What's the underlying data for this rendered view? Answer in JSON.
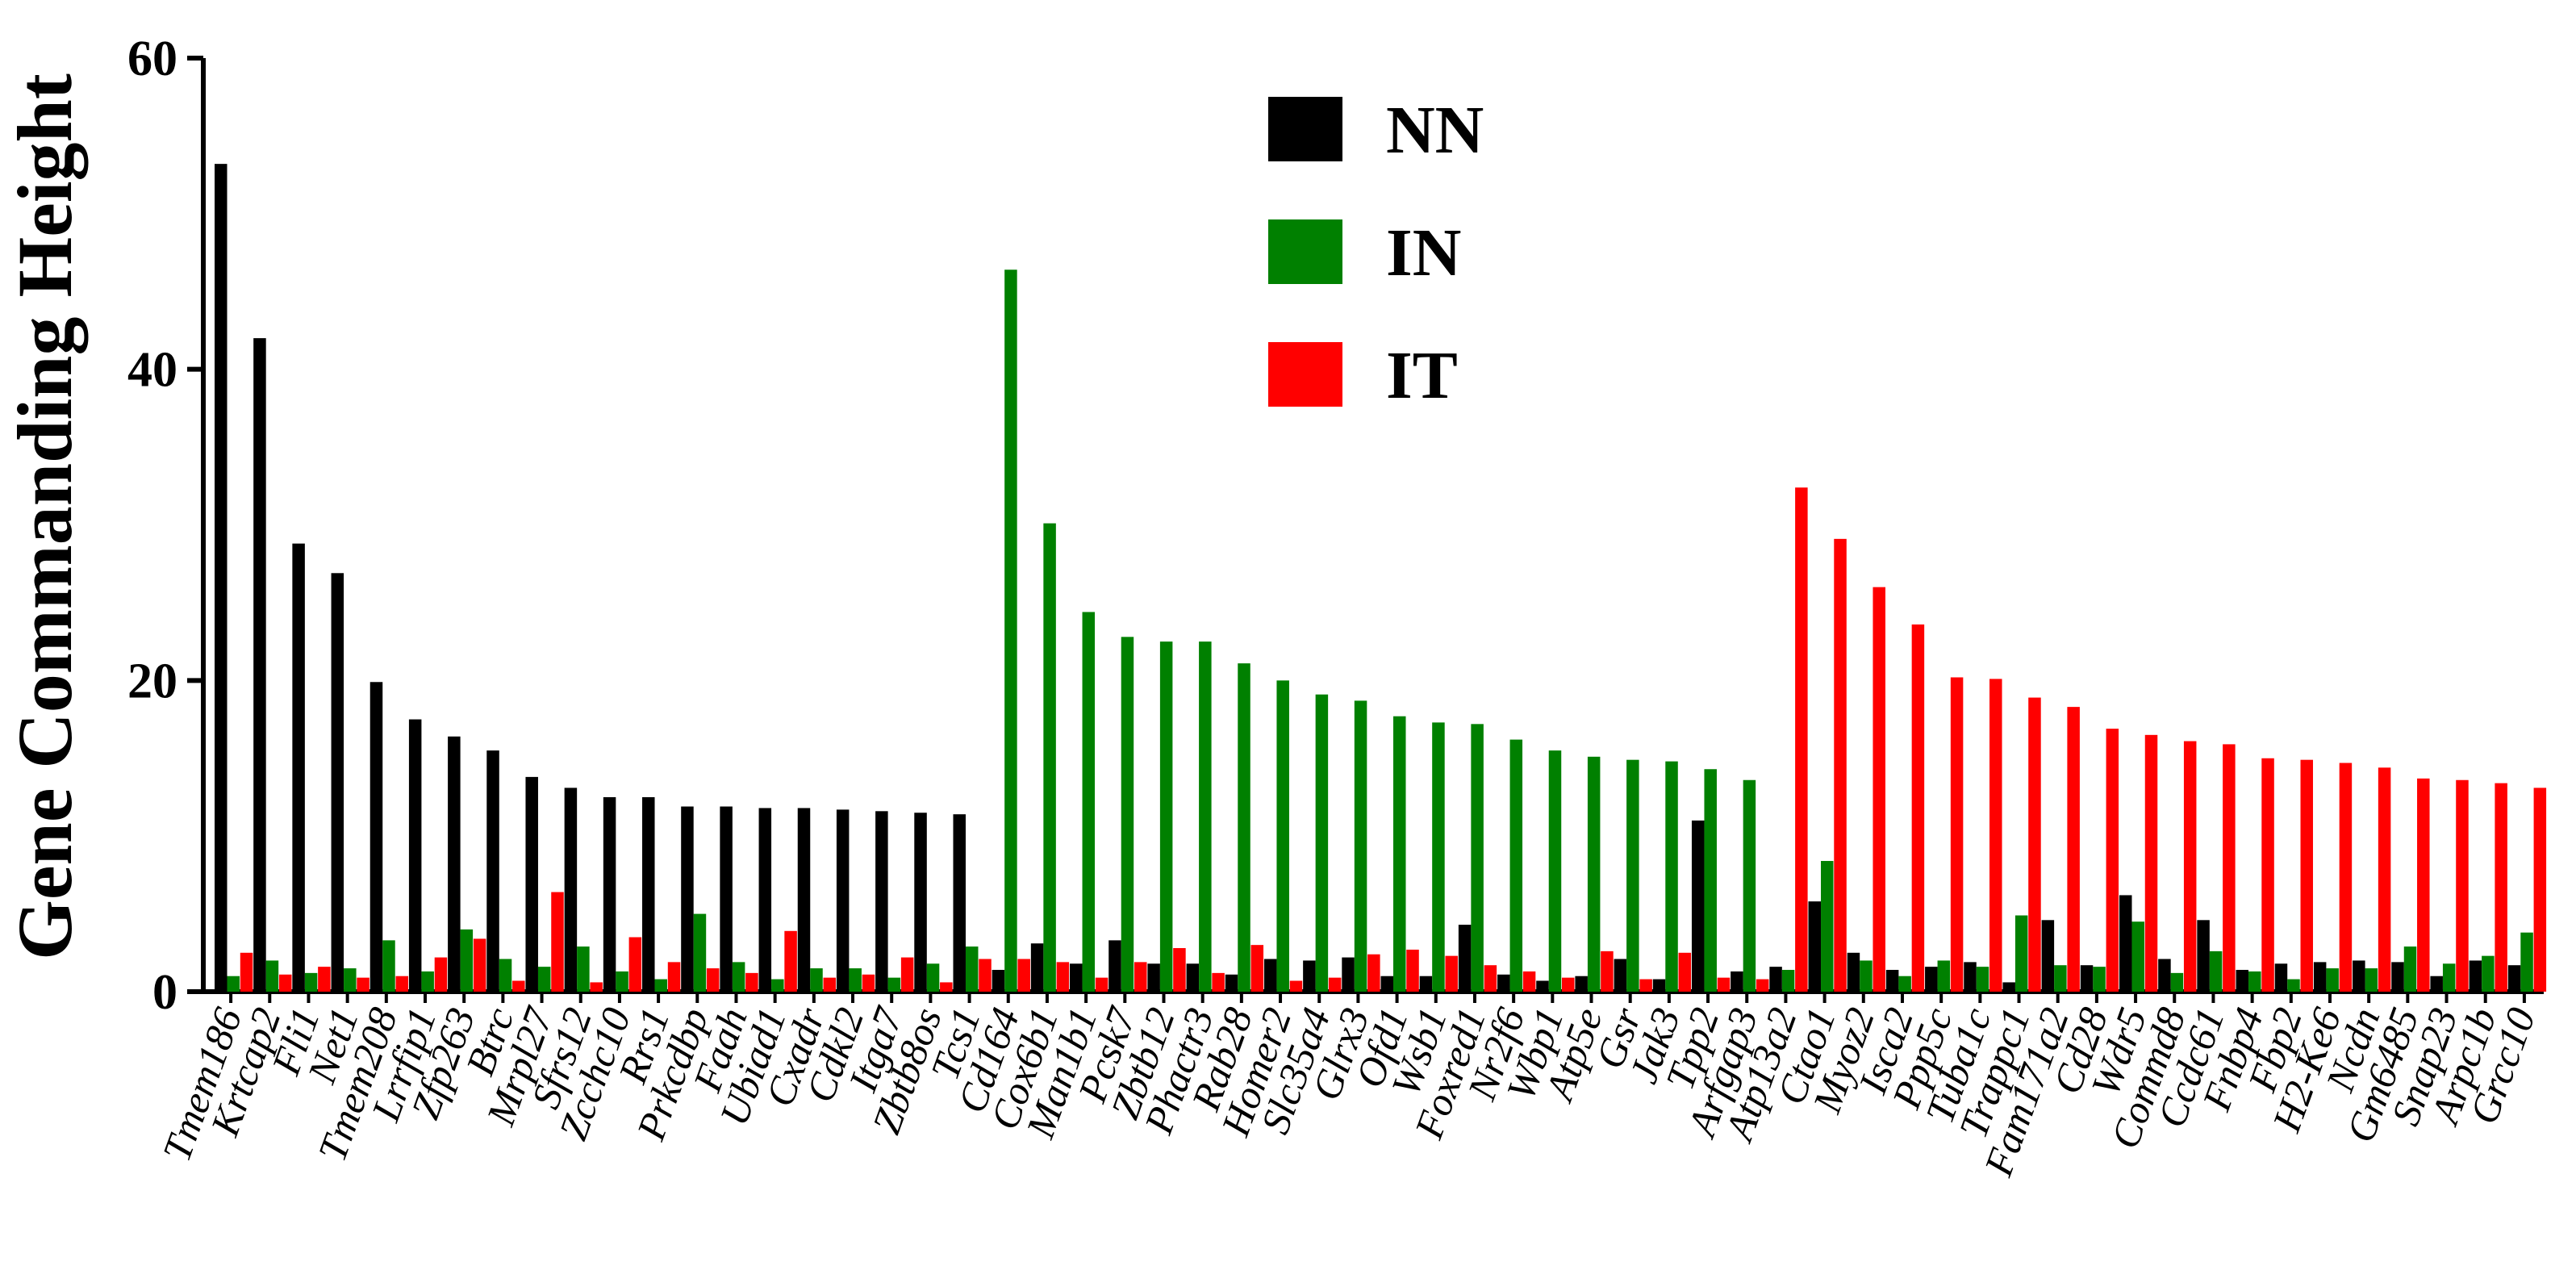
{
  "chart_data": {
    "type": "bar",
    "ylabel": "Gene Commanding Height",
    "xlabel": "",
    "ylim": [
      0,
      60
    ],
    "yticks": [
      "0",
      "20",
      "40",
      "60"
    ],
    "legend": {
      "placement": "top-center"
    },
    "categories": [
      "Tmem186",
      "Krtcap2",
      "Fli1",
      "Net1",
      "Tmem208",
      "Lrrfip1",
      "Zfp263",
      "Btrc",
      "Mrpl27",
      "Sfrs12",
      "Zcchc10",
      "Rrs1",
      "Prkcdbp",
      "Faah",
      "Ubiad1",
      "Cxadr",
      "Cdkl2",
      "Itga7",
      "Zbtb8os",
      "Tcs1",
      "Cd164",
      "Cox6b1",
      "Man1b1",
      "Pcsk7",
      "Zbtb12",
      "Phactr3",
      "Rab28",
      "Homer2",
      "Slc35a4",
      "Glrx3",
      "Ofd1",
      "Wsb1",
      "Foxred1",
      "Nr2f6",
      "Wbp1",
      "Atp5e",
      "Gsr",
      "Jak3",
      "Tpp2",
      "Arfgap3",
      "Atp13a2",
      "Ctao1",
      "Myoz2",
      "Isca2",
      "Ppp5c",
      "Tuba1c",
      "Trappc1",
      "Fam171a2",
      "Cd28",
      "Wdr5",
      "Commd8",
      "Ccdc61",
      "Fnbp4",
      "Fbp2",
      "H2-Ke6",
      "Ncdn",
      "Gm6485",
      "Snap23",
      "Arpc1b",
      "Grcc10"
    ],
    "series": [
      {
        "name": "NN",
        "color": "#000000",
        "values": [
          53.2,
          42,
          28.8,
          26.9,
          19.9,
          17.5,
          16.4,
          15.5,
          13.8,
          13.1,
          12.5,
          12.5,
          11.9,
          11.9,
          11.8,
          11.8,
          11.7,
          11.6,
          11.5,
          11.4,
          1.4,
          3.1,
          1.8,
          3.3,
          1.8,
          1.8,
          1.1,
          2.1,
          2,
          2.2,
          1,
          1,
          4.3,
          1.1,
          0.7,
          1,
          2.1,
          0.8,
          11,
          1.3,
          1.6,
          5.8,
          2.5,
          1.4,
          1.6,
          1.9,
          0.6,
          4.6,
          1.7,
          6.2,
          2.1,
          4.6,
          1.4,
          1.8,
          1.9,
          2,
          1.9,
          1,
          2,
          1.7
        ]
      },
      {
        "name": "IN",
        "color": "#008000",
        "values": [
          1,
          2,
          1.2,
          1.5,
          3.3,
          1.3,
          4,
          2.1,
          1.6,
          2.9,
          1.3,
          0.8,
          5,
          1.9,
          0.8,
          1.5,
          1.5,
          0.9,
          1.8,
          2.9,
          46.4,
          30.1,
          24.4,
          22.8,
          22.5,
          22.5,
          21.1,
          20,
          19.1,
          18.7,
          17.7,
          17.3,
          17.2,
          16.2,
          15.5,
          15.1,
          14.9,
          14.8,
          14.3,
          13.6,
          1.4,
          8.4,
          2,
          1,
          2,
          1.6,
          4.9,
          1.7,
          1.6,
          4.5,
          1.2,
          2.6,
          1.3,
          0.8,
          1.5,
          1.5,
          2.9,
          1.8,
          2.3,
          3.8
        ]
      },
      {
        "name": "IT",
        "color": "#ff0000",
        "values": [
          2.5,
          1.1,
          1.6,
          0.9,
          1,
          2.2,
          3.4,
          0.7,
          6.4,
          0.6,
          3.5,
          1.9,
          1.5,
          1.2,
          3.9,
          0.9,
          1.1,
          2.2,
          0.6,
          2.1,
          2.1,
          1.9,
          0.9,
          1.9,
          2.8,
          1.2,
          3,
          0.7,
          0.9,
          2.4,
          2.7,
          2.3,
          1.7,
          1.3,
          0.9,
          2.6,
          0.8,
          2.5,
          0.9,
          0.8,
          32.4,
          29.1,
          26,
          23.6,
          20.2,
          20.1,
          18.9,
          18.3,
          16.9,
          16.5,
          16.1,
          15.9,
          15,
          14.9,
          14.7,
          14.4,
          13.7,
          13.6,
          13.4,
          13.1
        ]
      }
    ]
  }
}
